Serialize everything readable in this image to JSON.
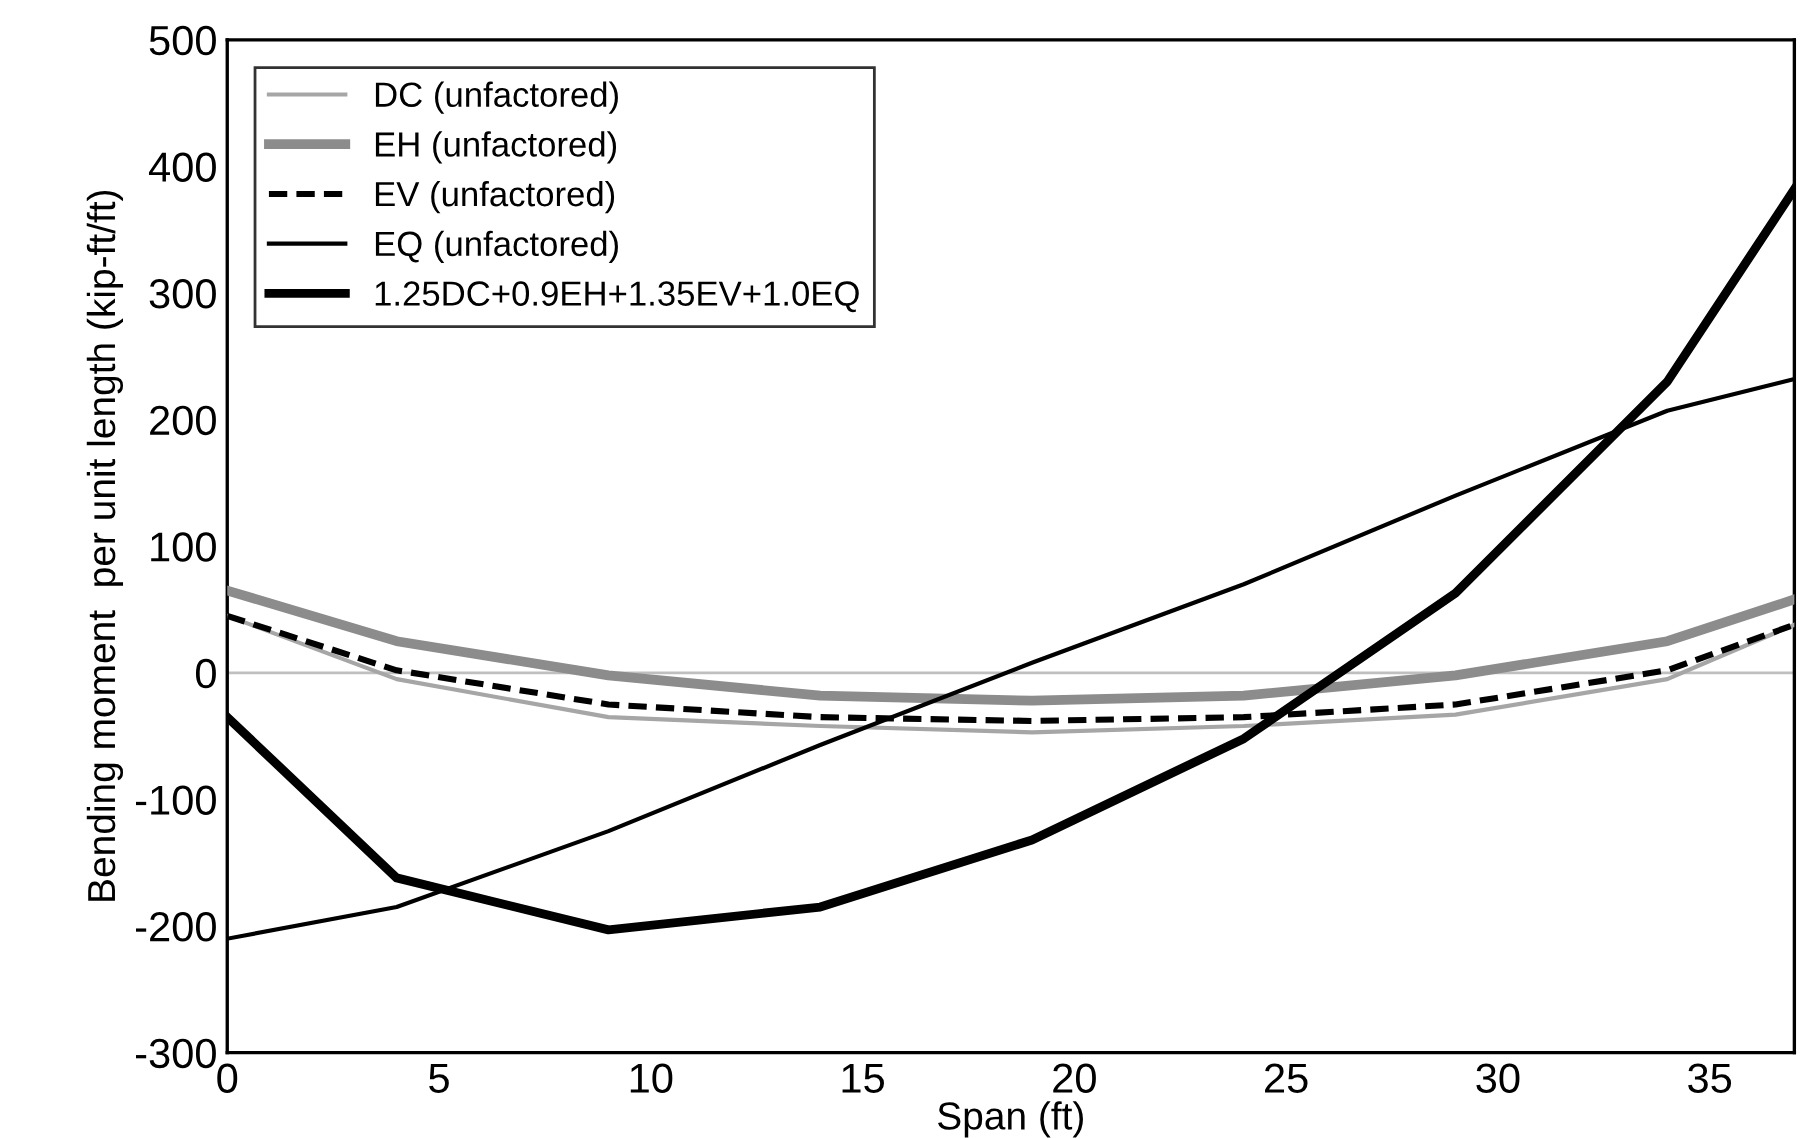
{
  "chart_data": {
    "type": "line",
    "xlabel": "Span (ft)",
    "ylabel": "Bending moment  per unit length (kip-ft/ft)",
    "x": [
      0,
      4,
      9,
      14,
      19,
      24,
      29,
      34,
      37
    ],
    "series": [
      {
        "name": "DC (unfactored)",
        "color": "#a6a6a6",
        "line_style": "solid",
        "values": [
          45,
          -5,
          -35,
          -42,
          -47,
          -42,
          -33,
          -5,
          38
        ]
      },
      {
        "name": "EH (unfactored)",
        "color": "#8c8c8c",
        "line_style": "solid",
        "values": [
          65,
          25,
          -2,
          -18,
          -22,
          -18,
          -2,
          25,
          58
        ]
      },
      {
        "name": "EV (unfactored)",
        "color": "#000000",
        "line_style": "dashed",
        "values": [
          45,
          2,
          -25,
          -35,
          -38,
          -35,
          -25,
          2,
          38
        ]
      },
      {
        "name": "EQ (unfactored)",
        "color": "#000000",
        "line_style": "solid",
        "values": [
          -210,
          -185,
          -125,
          -57,
          8,
          70,
          140,
          207,
          232
        ]
      },
      {
        "name": "1.25DC+0.9EH+1.35EV+1.0EQ",
        "color": "#000000",
        "line_style": "solid",
        "values": [
          -35,
          -162,
          -203,
          -185,
          -132,
          -52,
          63,
          230,
          382
        ]
      }
    ],
    "xlim": [
      0,
      37
    ],
    "xticks": [
      0,
      5,
      10,
      15,
      20,
      25,
      30,
      35
    ],
    "ylim": [
      -300,
      500
    ],
    "yticks": [
      -300,
      -200,
      -100,
      0,
      100,
      200,
      300,
      400,
      500
    ],
    "ref_lines": [
      {
        "axis": "y",
        "value": 0,
        "color": "#bfbfbf"
      }
    ],
    "marker": "none",
    "legend": "top left",
    "grid": false
  }
}
